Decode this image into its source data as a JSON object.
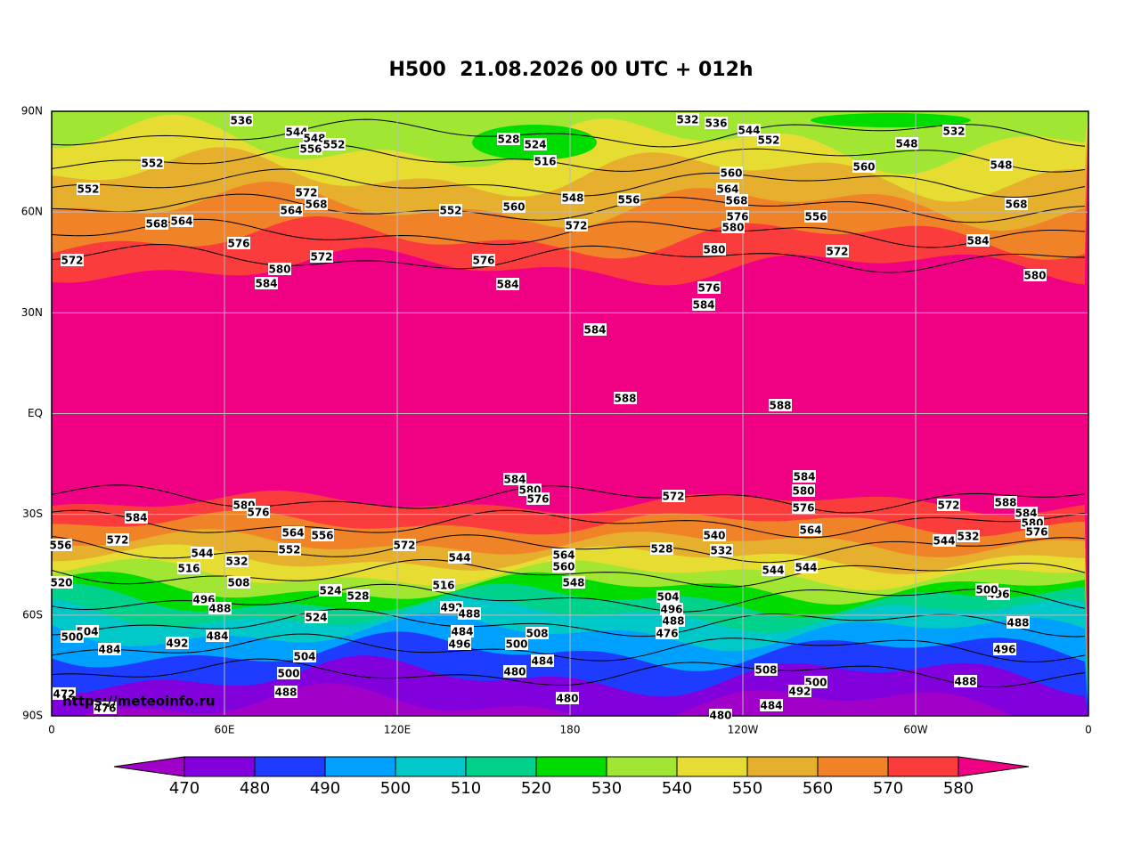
{
  "header": {
    "title": "H500  21.08.2026 00 UTC + 012h"
  },
  "map": {
    "lat_labels": [
      "90N",
      "60N",
      "30N",
      "EQ",
      "30S",
      "60S",
      "90S"
    ],
    "lon_labels": [
      "0",
      "60E",
      "120E",
      "180",
      "120W",
      "60W",
      "0"
    ],
    "watermark": "https://meteoinfo.ru",
    "contour_labels": [
      "536",
      "544",
      "548",
      "552",
      "552",
      "552",
      "556",
      "572",
      "568",
      "564",
      "568",
      "564",
      "576",
      "580",
      "584",
      "572",
      "572",
      "528",
      "524",
      "516",
      "552",
      "560",
      "548",
      "572",
      "576",
      "584",
      "556",
      "532",
      "536",
      "544",
      "552",
      "560",
      "564",
      "568",
      "576",
      "580",
      "580",
      "576",
      "584",
      "556",
      "572",
      "560",
      "548",
      "532",
      "548",
      "568",
      "584",
      "580",
      "584",
      "588",
      "588",
      "584",
      "580",
      "576",
      "572",
      "584",
      "580",
      "576",
      "588",
      "584",
      "580",
      "576",
      "572",
      "584",
      "580",
      "576",
      "572",
      "556",
      "564",
      "552",
      "556",
      "544",
      "532",
      "516",
      "508",
      "496",
      "488",
      "484",
      "520",
      "504",
      "500",
      "484",
      "492",
      "472",
      "476",
      "500",
      "504",
      "488",
      "524",
      "528",
      "524",
      "572",
      "544",
      "516",
      "492",
      "488",
      "484",
      "496",
      "500",
      "508",
      "484",
      "480",
      "480",
      "564",
      "560",
      "548",
      "528",
      "540",
      "532",
      "544",
      "564",
      "544",
      "504",
      "496",
      "488",
      "476",
      "508",
      "500",
      "492",
      "484",
      "480",
      "544",
      "532",
      "496",
      "488",
      "496",
      "488",
      "500"
    ]
  },
  "colorbar": {
    "levels": [
      470,
      480,
      490,
      500,
      510,
      520,
      530,
      540,
      550,
      560,
      570,
      580
    ],
    "colors": [
      "#a000c8",
      "#8200dc",
      "#1e3cff",
      "#00a0ff",
      "#00c8c8",
      "#00d28c",
      "#00dc00",
      "#a0e632",
      "#e6dc32",
      "#e6af2d",
      "#f08228",
      "#fa3c3c",
      "#f00082"
    ]
  }
}
